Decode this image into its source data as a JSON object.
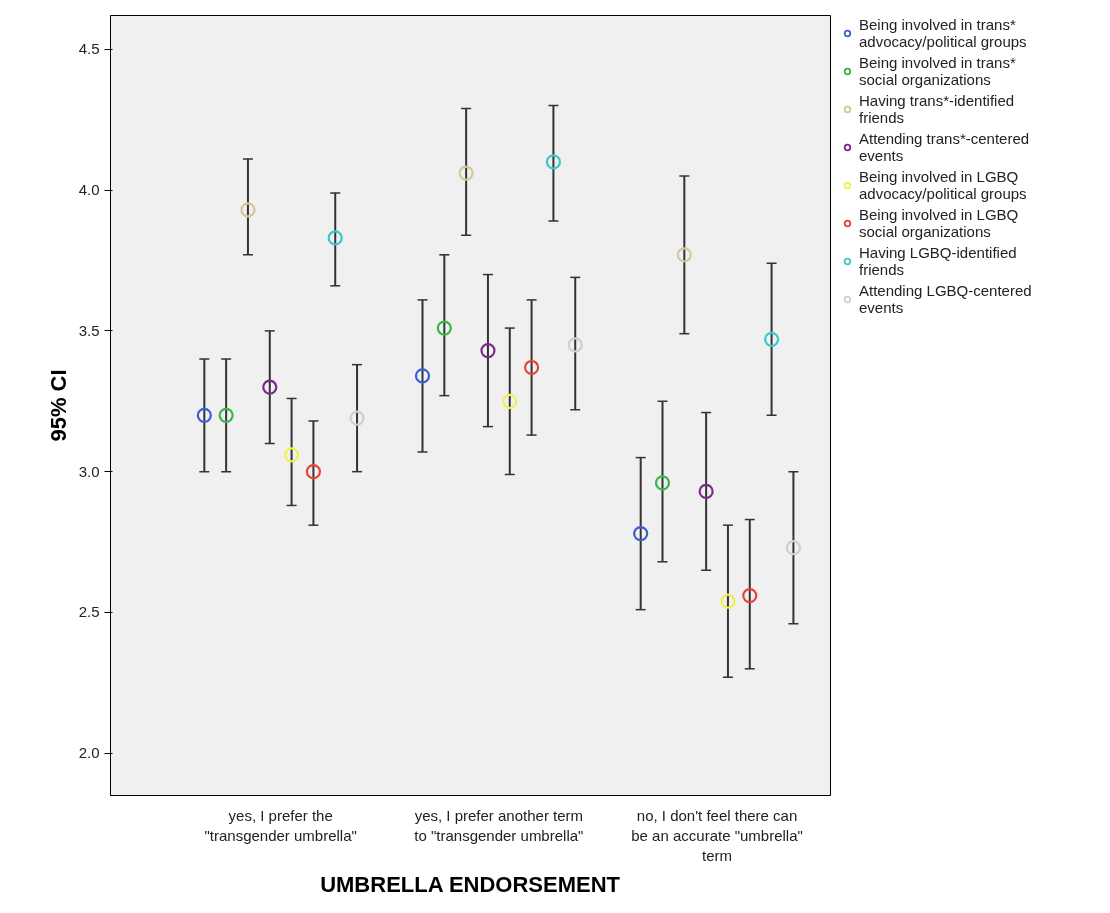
{
  "chart_data": {
    "type": "scatter",
    "xlabel": "UMBRELLA ENDORSEMENT",
    "ylabel": "95% CI",
    "categories": [
      "yes, I prefer the \"transgender umbrella\"",
      "yes, I prefer another term to \"transgender umbrella\"",
      "no, I don't feel there can be an accurate \"umbrella\" term"
    ],
    "ylim": [
      1.85,
      4.62
    ],
    "yticks": [
      {
        "value": 2,
        "label": "2.0"
      },
      {
        "value": 2.5,
        "label": "2.5"
      },
      {
        "value": 3,
        "label": "3.0"
      },
      {
        "value": 3.5,
        "label": "3.5"
      },
      {
        "value": 4,
        "label": "4.0"
      },
      {
        "value": 4.5,
        "label": "4.5"
      }
    ],
    "grid": false,
    "legend": "right",
    "marker": "circle",
    "series": [
      {
        "name": "Being involved in trans* advocacy/political groups",
        "color": "#3b5fcf",
        "values": [
          3.2,
          3.34,
          2.78
        ],
        "errors": [
          [
            3.0,
            3.4
          ],
          [
            3.07,
            3.61
          ],
          [
            2.51,
            3.05
          ]
        ]
      },
      {
        "name": "Being involved in trans* social organizations",
        "color": "#39b54a",
        "values": [
          3.2,
          3.51,
          2.96
        ],
        "errors": [
          [
            3.0,
            3.4
          ],
          [
            3.27,
            3.77
          ],
          [
            2.68,
            3.25
          ]
        ]
      },
      {
        "name": "Having trans*-identified friends",
        "color": "#d4c89a",
        "values": [
          3.93,
          4.06,
          3.77
        ],
        "errors": [
          [
            3.77,
            4.11
          ],
          [
            3.84,
            4.29
          ],
          [
            3.49,
            4.05
          ]
        ]
      },
      {
        "name": "Attending trans*-centered events",
        "color": "#7b2a8a",
        "values": [
          3.3,
          3.43,
          2.93
        ],
        "errors": [
          [
            3.1,
            3.5
          ],
          [
            3.16,
            3.7
          ],
          [
            2.65,
            3.21
          ]
        ]
      },
      {
        "name": "Being involved in LGBQ advocacy/political groups",
        "color": "#f0f050",
        "values": [
          3.06,
          3.25,
          2.54
        ],
        "errors": [
          [
            2.88,
            3.26
          ],
          [
            2.99,
            3.51
          ],
          [
            2.27,
            2.81
          ]
        ]
      },
      {
        "name": "Being involved in LGBQ social organizations",
        "color": "#e8413c",
        "values": [
          3.0,
          3.37,
          2.56
        ],
        "errors": [
          [
            2.81,
            3.18
          ],
          [
            3.13,
            3.61
          ],
          [
            2.3,
            2.83
          ]
        ]
      },
      {
        "name": "Having LGBQ-identified friends",
        "color": "#3ec8c8",
        "values": [
          3.83,
          4.1,
          3.47
        ],
        "errors": [
          [
            3.66,
            3.99
          ],
          [
            3.89,
            4.3
          ],
          [
            3.2,
            3.74
          ]
        ]
      },
      {
        "name": "Attending LGBQ-centered events",
        "color": "#cfcfcf",
        "values": [
          3.19,
          3.45,
          2.73
        ],
        "errors": [
          [
            3.0,
            3.38
          ],
          [
            3.22,
            3.69
          ],
          [
            2.46,
            3.0
          ]
        ]
      }
    ]
  }
}
